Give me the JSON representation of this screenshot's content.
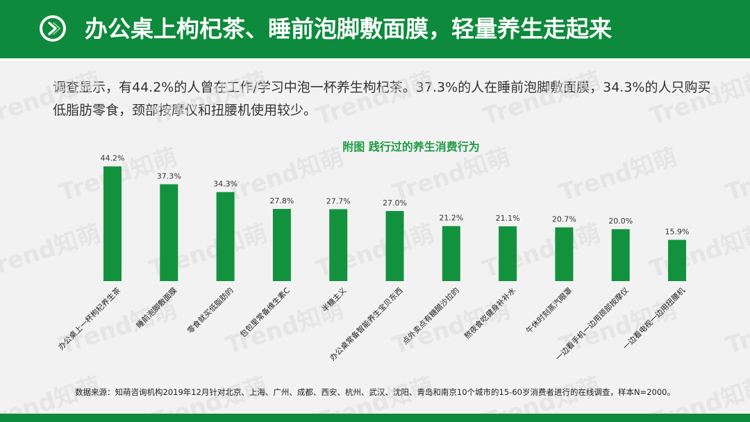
{
  "page": {
    "title": "办公桌上枸杞茶、睡前泡脚敷面膜，轻量养生走起来",
    "intro": "调查显示，有44.2%的人曾在工作/学习中泡一杯养生枸杞茶。37.3%的人在睡前泡脚敷面膜，34.3%的人只购买低脂肪零食，颈部按摩仪和扭腰机使用较少。",
    "source": "数据来源：知萌咨询机构2019年12月针对北京、上海、广州、成都、西安、杭州、武汉、沈阳、青岛和南京10个城市的15-60岁消费者进行的在线调查，样本N=2000。",
    "watermark_text": "Trend知萌",
    "header_icon": "chevron-right-icon"
  },
  "colors": {
    "brand_green": "#0e8a3c",
    "bar_green": "#13923e",
    "chart_title_green": "#1f9a44",
    "text_dark": "#333333"
  },
  "chart_data": {
    "type": "bar",
    "title": "附图  践行过的养生消费行为",
    "categories": [
      "办公桌上一杯枸杞养生茶",
      "睡前泡脚敷面膜",
      "零食就买低脂肪的",
      "包包里常备维生素C",
      "半糖主义",
      "办公桌常备智能养生宝贝东西",
      "点外卖点有糖醋沙拉的",
      "熬夜食吃健身补补水",
      "午休时刻蒸汽眼罩",
      "一边看手机一边用颈部按摩仪",
      "一边看电视一边用扭腰机"
    ],
    "values": [
      44.2,
      37.3,
      34.3,
      27.8,
      27.7,
      27.0,
      21.2,
      21.1,
      20.7,
      20.0,
      15.9
    ],
    "value_labels": [
      "44.2%",
      "37.3%",
      "34.3%",
      "27.8%",
      "27.7%",
      "27.0%",
      "21.2%",
      "21.1%",
      "20.7%",
      "20.0%",
      "15.9%"
    ],
    "unit": "%",
    "ylim": [
      0,
      50
    ],
    "xlabel": "",
    "ylabel": "",
    "grid": false,
    "legend": "none"
  }
}
